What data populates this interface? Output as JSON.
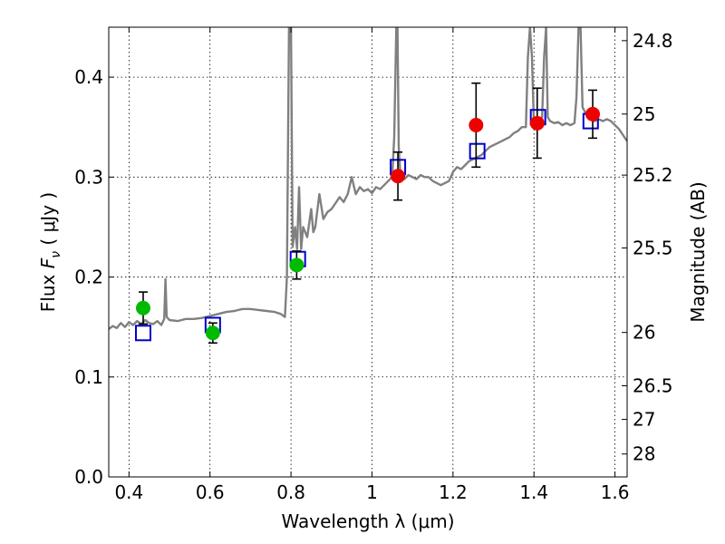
{
  "chart_data": {
    "type": "scatter",
    "xlabel": "Wavelength  λ (μm)",
    "ylabel": "Flux  F_ν  ( μJy )",
    "ylabel_parts": {
      "pre": "Flux  ",
      "var": "F",
      "sub": "ν",
      "post": "  ( μJy )"
    },
    "y2label": "Magnitude (AB)",
    "xlim": [
      0.35,
      1.63
    ],
    "ylim": [
      0.0,
      0.45
    ],
    "grid": true,
    "x_ticks": [
      {
        "v": 0.4,
        "label": "0.4"
      },
      {
        "v": 0.6,
        "label": "0.6"
      },
      {
        "v": 0.8,
        "label": "0.8"
      },
      {
        "v": 1.0,
        "label": "1"
      },
      {
        "v": 1.2,
        "label": "1.2"
      },
      {
        "v": 1.4,
        "label": "1.4"
      },
      {
        "v": 1.6,
        "label": "1.6"
      }
    ],
    "y_ticks": [
      {
        "v": 0.0,
        "label": "0.0"
      },
      {
        "v": 0.1,
        "label": "0.1"
      },
      {
        "v": 0.2,
        "label": "0.2"
      },
      {
        "v": 0.3,
        "label": "0.3"
      },
      {
        "v": 0.4,
        "label": "0.4"
      }
    ],
    "mag_ticks": [
      {
        "mag": 24.8,
        "label": "24.8"
      },
      {
        "mag": 25.0,
        "label": "25"
      },
      {
        "mag": 25.2,
        "label": "25.2"
      },
      {
        "mag": 25.5,
        "label": "25.5"
      },
      {
        "mag": 26.0,
        "label": "26"
      },
      {
        "mag": 26.5,
        "label": "26.5"
      },
      {
        "mag": 27.0,
        "label": "27"
      },
      {
        "mag": 28.0,
        "label": "28"
      }
    ],
    "colors": {
      "spectrum": "#808080",
      "model": "#0000cc",
      "optical": "#00bb00",
      "nir": "#ee0000",
      "errorbar": "#000000"
    },
    "spectrum": [
      [
        0.35,
        0.148
      ],
      [
        0.36,
        0.151
      ],
      [
        0.37,
        0.149
      ],
      [
        0.38,
        0.154
      ],
      [
        0.39,
        0.15
      ],
      [
        0.4,
        0.155
      ],
      [
        0.41,
        0.152
      ],
      [
        0.42,
        0.156
      ],
      [
        0.43,
        0.153
      ],
      [
        0.44,
        0.157
      ],
      [
        0.45,
        0.154
      ],
      [
        0.46,
        0.153
      ],
      [
        0.47,
        0.156
      ],
      [
        0.48,
        0.152
      ],
      [
        0.487,
        0.158
      ],
      [
        0.49,
        0.198
      ],
      [
        0.493,
        0.16
      ],
      [
        0.5,
        0.157
      ],
      [
        0.52,
        0.156
      ],
      [
        0.54,
        0.158
      ],
      [
        0.56,
        0.158
      ],
      [
        0.58,
        0.159
      ],
      [
        0.6,
        0.161
      ],
      [
        0.62,
        0.163
      ],
      [
        0.64,
        0.165
      ],
      [
        0.66,
        0.166
      ],
      [
        0.68,
        0.168
      ],
      [
        0.7,
        0.168
      ],
      [
        0.72,
        0.167
      ],
      [
        0.74,
        0.166
      ],
      [
        0.76,
        0.165
      ],
      [
        0.775,
        0.163
      ],
      [
        0.785,
        0.16
      ],
      [
        0.79,
        0.2
      ],
      [
        0.795,
        0.45
      ],
      [
        0.8,
        0.45
      ],
      [
        0.804,
        0.23
      ],
      [
        0.81,
        0.25
      ],
      [
        0.815,
        0.228
      ],
      [
        0.82,
        0.29
      ],
      [
        0.825,
        0.228
      ],
      [
        0.83,
        0.25
      ],
      [
        0.84,
        0.24
      ],
      [
        0.85,
        0.268
      ],
      [
        0.855,
        0.245
      ],
      [
        0.86,
        0.25
      ],
      [
        0.87,
        0.283
      ],
      [
        0.88,
        0.258
      ],
      [
        0.89,
        0.265
      ],
      [
        0.9,
        0.268
      ],
      [
        0.91,
        0.274
      ],
      [
        0.92,
        0.28
      ],
      [
        0.93,
        0.275
      ],
      [
        0.94,
        0.283
      ],
      [
        0.95,
        0.3
      ],
      [
        0.96,
        0.283
      ],
      [
        0.97,
        0.29
      ],
      [
        0.98,
        0.286
      ],
      [
        0.99,
        0.288
      ],
      [
        1.0,
        0.284
      ],
      [
        1.01,
        0.29
      ],
      [
        1.02,
        0.288
      ],
      [
        1.03,
        0.292
      ],
      [
        1.04,
        0.296
      ],
      [
        1.05,
        0.3
      ],
      [
        1.055,
        0.34
      ],
      [
        1.06,
        0.45
      ],
      [
        1.063,
        0.45
      ],
      [
        1.066,
        0.33
      ],
      [
        1.07,
        0.302
      ],
      [
        1.08,
        0.298
      ],
      [
        1.09,
        0.302
      ],
      [
        1.1,
        0.3
      ],
      [
        1.11,
        0.298
      ],
      [
        1.12,
        0.302
      ],
      [
        1.13,
        0.3
      ],
      [
        1.14,
        0.3
      ],
      [
        1.15,
        0.296
      ],
      [
        1.16,
        0.294
      ],
      [
        1.17,
        0.292
      ],
      [
        1.18,
        0.294
      ],
      [
        1.19,
        0.296
      ],
      [
        1.2,
        0.305
      ],
      [
        1.21,
        0.31
      ],
      [
        1.22,
        0.308
      ],
      [
        1.23,
        0.312
      ],
      [
        1.24,
        0.316
      ],
      [
        1.25,
        0.318
      ],
      [
        1.26,
        0.32
      ],
      [
        1.27,
        0.322
      ],
      [
        1.28,
        0.326
      ],
      [
        1.29,
        0.33
      ],
      [
        1.3,
        0.332
      ],
      [
        1.31,
        0.334
      ],
      [
        1.32,
        0.336
      ],
      [
        1.33,
        0.338
      ],
      [
        1.34,
        0.34
      ],
      [
        1.35,
        0.344
      ],
      [
        1.36,
        0.346
      ],
      [
        1.37,
        0.35
      ],
      [
        1.38,
        0.35
      ],
      [
        1.385,
        0.42
      ],
      [
        1.39,
        0.45
      ],
      [
        1.395,
        0.42
      ],
      [
        1.4,
        0.35
      ],
      [
        1.41,
        0.352
      ],
      [
        1.42,
        0.36
      ],
      [
        1.425,
        0.42
      ],
      [
        1.43,
        0.45
      ],
      [
        1.434,
        0.36
      ],
      [
        1.44,
        0.356
      ],
      [
        1.45,
        0.354
      ],
      [
        1.46,
        0.355
      ],
      [
        1.47,
        0.352
      ],
      [
        1.48,
        0.354
      ],
      [
        1.49,
        0.352
      ],
      [
        1.5,
        0.354
      ],
      [
        1.505,
        0.38
      ],
      [
        1.51,
        0.45
      ],
      [
        1.515,
        0.45
      ],
      [
        1.52,
        0.37
      ],
      [
        1.53,
        0.362
      ],
      [
        1.54,
        0.358
      ],
      [
        1.55,
        0.356
      ],
      [
        1.56,
        0.358
      ],
      [
        1.57,
        0.356
      ],
      [
        1.58,
        0.358
      ],
      [
        1.59,
        0.356
      ],
      [
        1.6,
        0.352
      ],
      [
        1.61,
        0.348
      ],
      [
        1.62,
        0.342
      ],
      [
        1.63,
        0.336
      ]
    ],
    "model_points": [
      {
        "x": 0.435,
        "y": 0.144
      },
      {
        "x": 0.607,
        "y": 0.152
      },
      {
        "x": 0.817,
        "y": 0.218
      },
      {
        "x": 1.064,
        "y": 0.31
      },
      {
        "x": 1.26,
        "y": 0.326
      },
      {
        "x": 1.41,
        "y": 0.36
      },
      {
        "x": 1.54,
        "y": 0.356
      }
    ],
    "observed_points": [
      {
        "x": 0.435,
        "y": 0.169,
        "err": 0.016,
        "group": "optical"
      },
      {
        "x": 0.607,
        "y": 0.144,
        "err": 0.01,
        "group": "optical"
      },
      {
        "x": 0.814,
        "y": 0.212,
        "err": 0.014,
        "group": "optical"
      },
      {
        "x": 1.064,
        "y": 0.301,
        "err": 0.024,
        "group": "nir"
      },
      {
        "x": 1.257,
        "y": 0.352,
        "err": 0.042,
        "group": "nir"
      },
      {
        "x": 1.408,
        "y": 0.354,
        "err": 0.035,
        "group": "nir"
      },
      {
        "x": 1.545,
        "y": 0.363,
        "err": 0.024,
        "group": "nir"
      }
    ]
  }
}
